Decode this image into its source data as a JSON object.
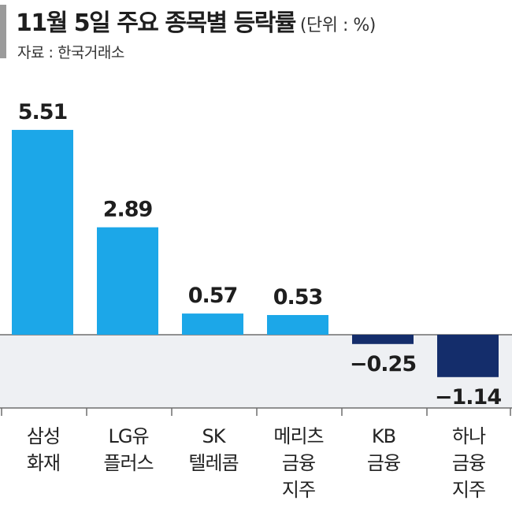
{
  "header": {
    "title": "11월 5일 주요 종목별 등락률",
    "unit": "(단위 : %)",
    "source": "자료 : 한국거래소"
  },
  "colors": {
    "positive": "#1ca7e8",
    "negative": "#142d6b",
    "below_zero_band": "#eef0f3",
    "axis": "#6e6e6e",
    "accent": "#9b9b9b"
  },
  "chart_data": {
    "type": "bar",
    "title": "11월 5일 주요 종목별 등락률",
    "unit": "%",
    "categories": [
      [
        "삼성",
        "화재"
      ],
      [
        "LG유",
        "플러스"
      ],
      [
        "SK",
        "텔레콤"
      ],
      [
        "메리츠",
        "금융",
        "지주"
      ],
      [
        "KB",
        "금융"
      ],
      [
        "하나",
        "금융",
        "지주"
      ]
    ],
    "values": [
      5.51,
      2.89,
      0.57,
      0.53,
      -0.25,
      -1.14
    ],
    "value_labels": [
      "5.51",
      "2.89",
      "0.57",
      "0.53",
      "−0.25",
      "−1.14"
    ],
    "xlabel": "",
    "ylabel": "",
    "ylim": [
      -1.6,
      5.7
    ],
    "grid": false,
    "legend": "none"
  }
}
